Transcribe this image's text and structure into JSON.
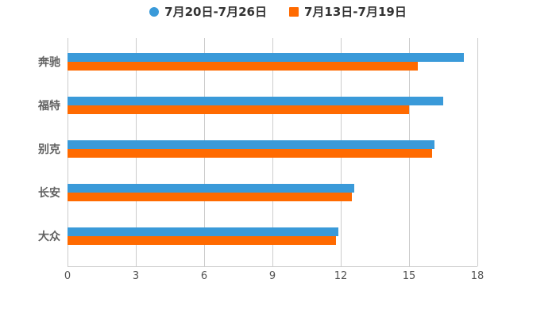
{
  "page": {
    "background": "#ffffff"
  },
  "legend": {
    "items": [
      {
        "label": "7月20日-7月26日",
        "marker": "circle",
        "color": "#3a9ad9"
      },
      {
        "label": "7月13日-7月19日",
        "marker": "square",
        "color": "#ff6a00"
      }
    ]
  },
  "chart_data": {
    "type": "bar",
    "orientation": "horizontal",
    "title": "",
    "xlabel": "",
    "ylabel": "",
    "categories": [
      "奔驰",
      "福特",
      "别克",
      "长安",
      "大众"
    ],
    "series": [
      {
        "name": "7月20日-7月26日",
        "color": "#3a9ad9",
        "values": [
          17.4,
          16.5,
          16.1,
          12.6,
          11.9
        ]
      },
      {
        "name": "7月13日-7月19日",
        "color": "#ff6a00",
        "values": [
          15.4,
          15.0,
          16.0,
          12.5,
          11.8
        ]
      }
    ],
    "xlim": [
      0,
      18
    ],
    "x_ticks": [
      0,
      3,
      6,
      9,
      12,
      15,
      18
    ],
    "grid": "vertical",
    "legend_position": "top",
    "axis_color": "#cccccc",
    "tick_label_color": "#555555",
    "category_label_color": "#616161"
  }
}
